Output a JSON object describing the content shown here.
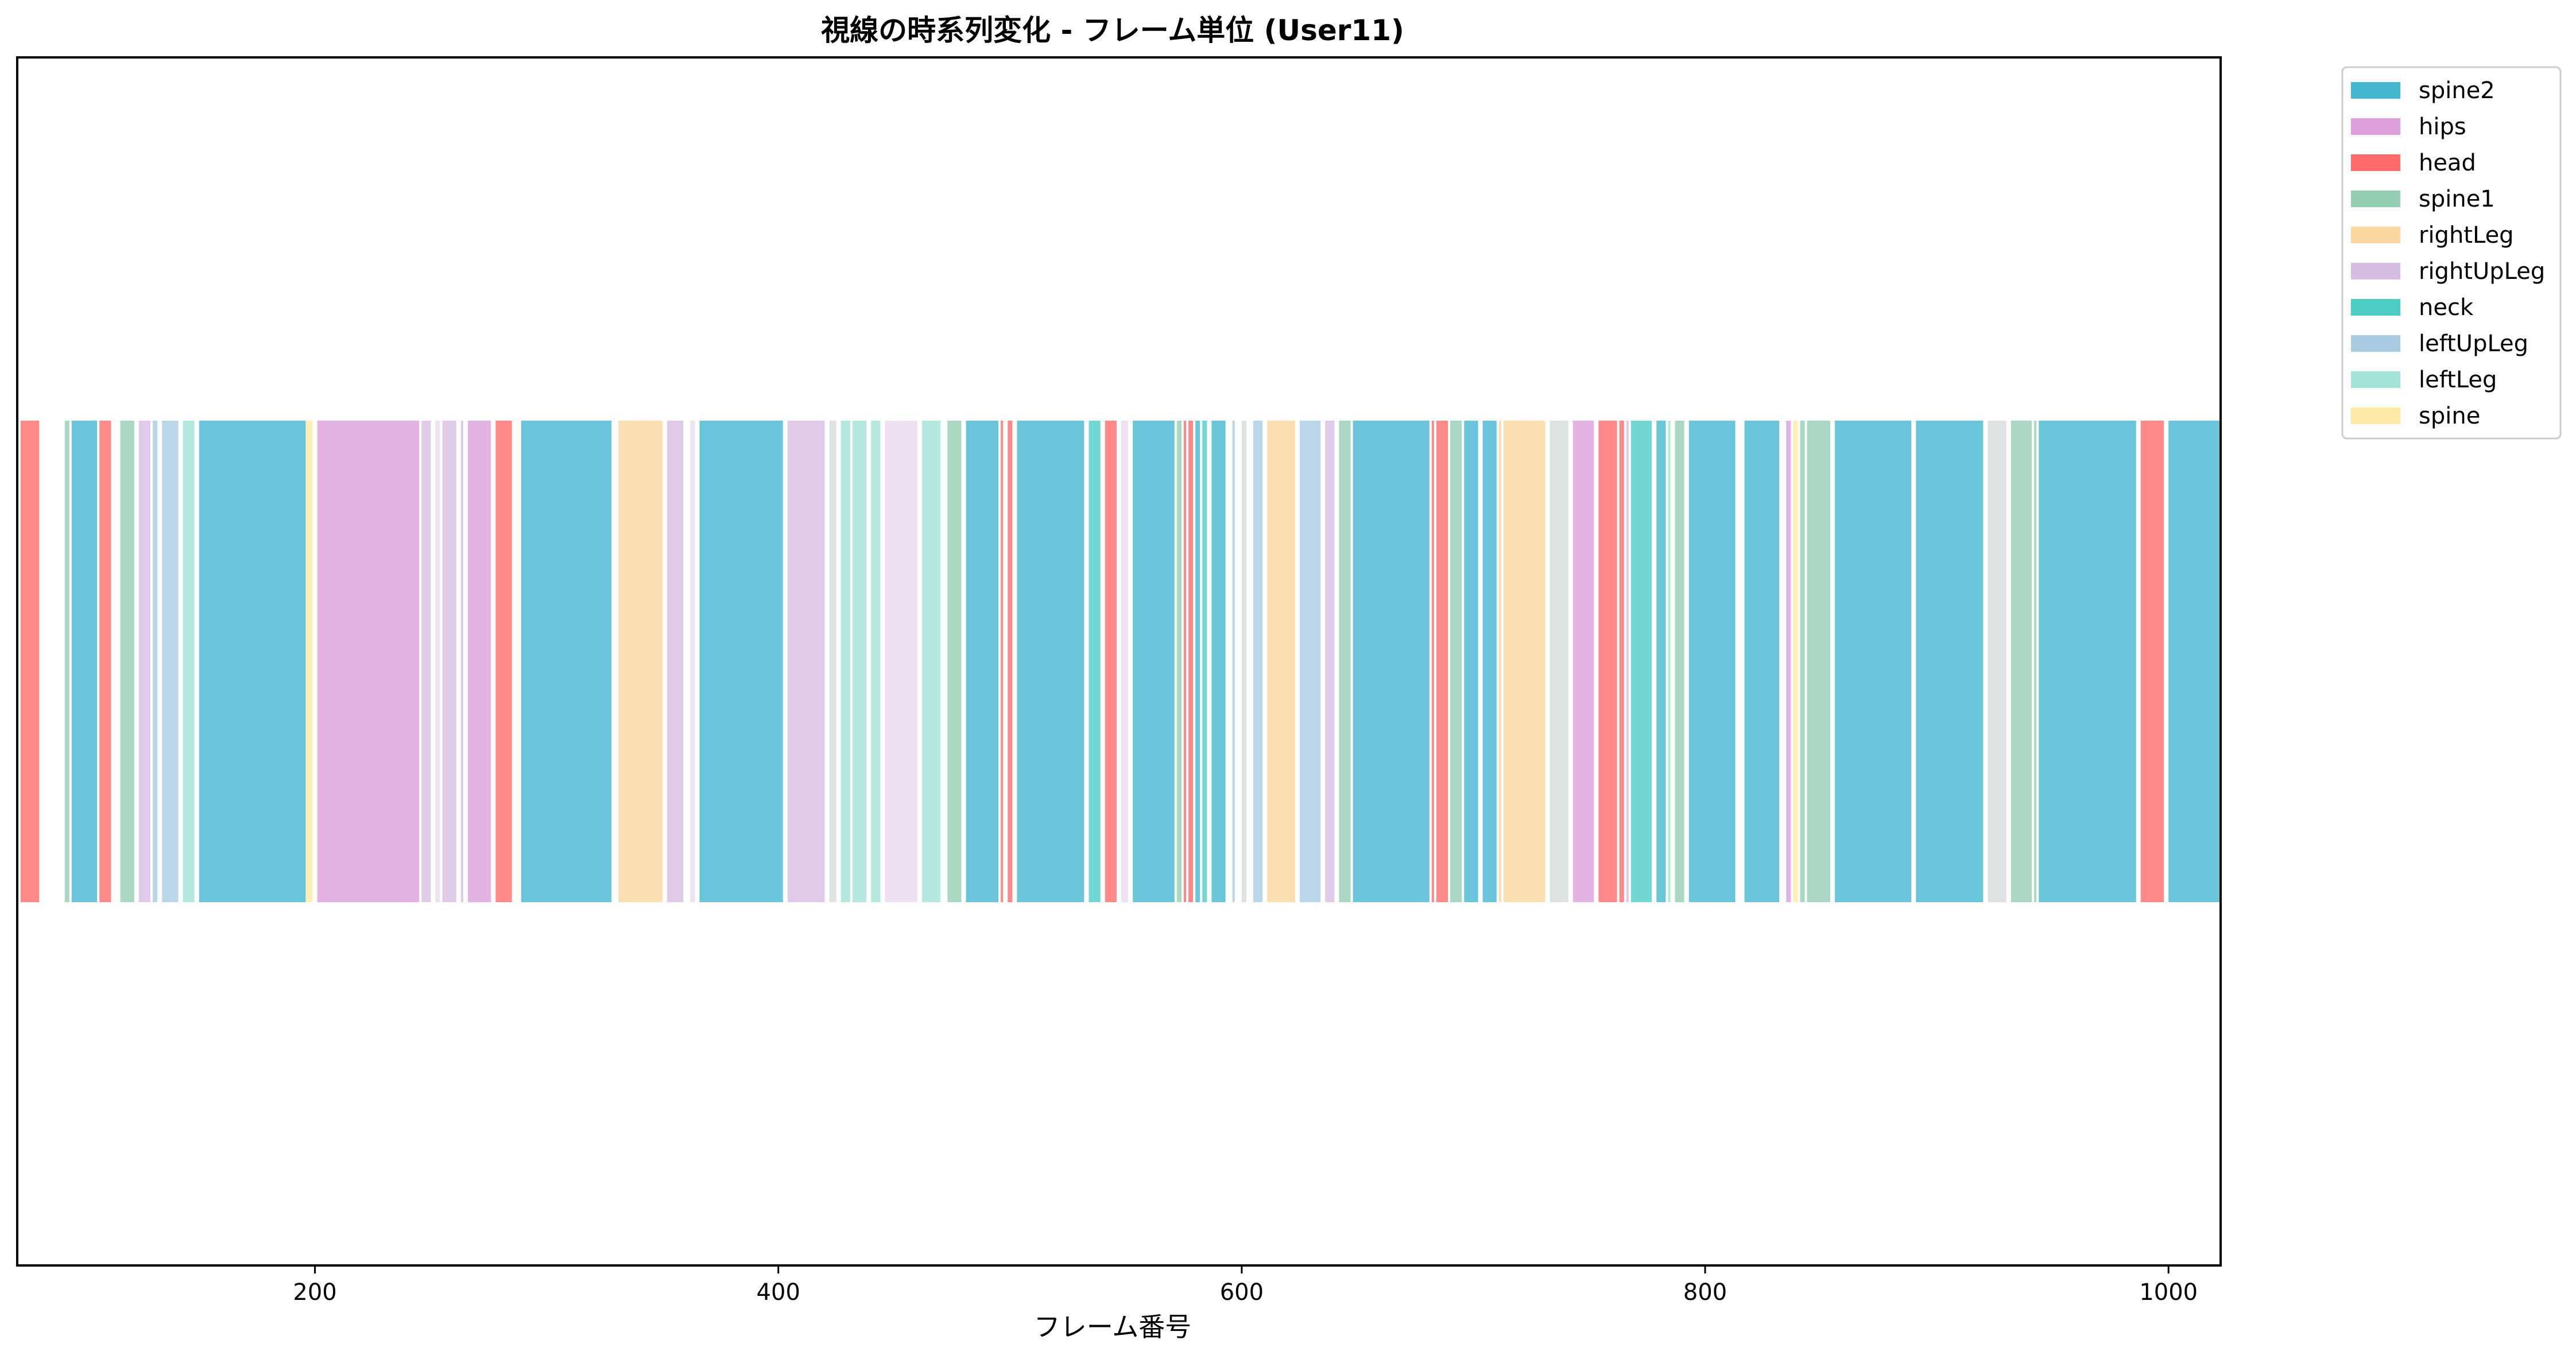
{
  "chart_data": {
    "type": "bar",
    "orientation": "horizontal-timeline",
    "title": "視線の時系列変化 - フレーム単位 (User11)",
    "xlabel": "フレーム番号",
    "ylabel": "",
    "xlim": [
      72,
      1022
    ],
    "xticks": [
      200,
      400,
      600,
      800,
      1000
    ],
    "grid": false,
    "legend_position": "outside-top-right",
    "colors": {
      "spine2": "#45b7d1",
      "hips": "#dda0dd",
      "head": "#ff6b6b",
      "spine1": "#96ceb4",
      "rightLeg": "#fad7a0",
      "rightUpLeg": "#d7bde2",
      "neck": "#4ecdc4",
      "leftUpLeg": "#a9cce3",
      "leftLeg": "#a3e4d7",
      "spine": "#ffeaa7",
      "other_light_gray": "#d5dbdb",
      "other_lavender": "#e8daef"
    },
    "legend": [
      "spine2",
      "hips",
      "head",
      "spine1",
      "rightLeg",
      "rightUpLeg",
      "neck",
      "leftUpLeg",
      "leftLeg",
      "spine"
    ],
    "segments": [
      {
        "start": 73,
        "end": 81,
        "part": "head"
      },
      {
        "start": 92,
        "end": 94,
        "part": "spine1"
      },
      {
        "start": 95,
        "end": 106,
        "part": "spine2"
      },
      {
        "start": 107,
        "end": 112,
        "part": "head"
      },
      {
        "start": 116,
        "end": 122,
        "part": "spine1"
      },
      {
        "start": 124,
        "end": 129,
        "part": "rightUpLeg"
      },
      {
        "start": 130,
        "end": 132,
        "part": "leftUpLeg"
      },
      {
        "start": 134,
        "end": 141,
        "part": "leftUpLeg"
      },
      {
        "start": 143,
        "end": 148,
        "part": "leftLeg"
      },
      {
        "start": 150,
        "end": 196,
        "part": "spine2"
      },
      {
        "start": 196,
        "end": 199,
        "part": "spine"
      },
      {
        "start": 201,
        "end": 245,
        "part": "hips"
      },
      {
        "start": 246,
        "end": 250,
        "part": "rightUpLeg"
      },
      {
        "start": 252,
        "end": 254,
        "part": "other_lavender"
      },
      {
        "start": 255,
        "end": 261,
        "part": "rightUpLeg"
      },
      {
        "start": 263,
        "end": 264,
        "part": "rightUpLeg"
      },
      {
        "start": 266,
        "end": 276,
        "part": "hips"
      },
      {
        "start": 278,
        "end": 285,
        "part": "head"
      },
      {
        "start": 289,
        "end": 328,
        "part": "spine2"
      },
      {
        "start": 331,
        "end": 350,
        "part": "rightLeg"
      },
      {
        "start": 352,
        "end": 359,
        "part": "rightUpLeg"
      },
      {
        "start": 362,
        "end": 364,
        "part": "other_lavender"
      },
      {
        "start": 366,
        "end": 402,
        "part": "spine2"
      },
      {
        "start": 404,
        "end": 420,
        "part": "rightUpLeg"
      },
      {
        "start": 422,
        "end": 425,
        "part": "other_light_gray"
      },
      {
        "start": 427,
        "end": 431,
        "part": "leftLeg"
      },
      {
        "start": 432,
        "end": 438,
        "part": "leftLeg"
      },
      {
        "start": 440,
        "end": 444,
        "part": "leftLeg"
      },
      {
        "start": 446,
        "end": 460,
        "part": "other_lavender"
      },
      {
        "start": 462,
        "end": 470,
        "part": "leftLeg"
      },
      {
        "start": 473,
        "end": 479,
        "part": "spine1"
      },
      {
        "start": 481,
        "end": 495,
        "part": "spine2"
      },
      {
        "start": 496,
        "end": 497,
        "part": "head"
      },
      {
        "start": 499,
        "end": 501,
        "part": "head"
      },
      {
        "start": 503,
        "end": 532,
        "part": "spine2"
      },
      {
        "start": 534,
        "end": 539,
        "part": "neck"
      },
      {
        "start": 541,
        "end": 546,
        "part": "head"
      },
      {
        "start": 548,
        "end": 551,
        "part": "other_lavender"
      },
      {
        "start": 553,
        "end": 571,
        "part": "spine2"
      },
      {
        "start": 572,
        "end": 574,
        "part": "spine1"
      },
      {
        "start": 575,
        "end": 576,
        "part": "head"
      },
      {
        "start": 577,
        "end": 579,
        "part": "head"
      },
      {
        "start": 580,
        "end": 582,
        "part": "spine2"
      },
      {
        "start": 583,
        "end": 585,
        "part": "neck"
      },
      {
        "start": 587,
        "end": 593,
        "part": "spine2"
      },
      {
        "start": 596,
        "end": 597,
        "part": "leftUpLeg"
      },
      {
        "start": 600,
        "end": 602,
        "part": "other_light_gray"
      },
      {
        "start": 605,
        "end": 609,
        "part": "leftUpLeg"
      },
      {
        "start": 611,
        "end": 623,
        "part": "rightLeg"
      },
      {
        "start": 625,
        "end": 634,
        "part": "leftUpLeg"
      },
      {
        "start": 636,
        "end": 640,
        "part": "rightUpLeg"
      },
      {
        "start": 642,
        "end": 647,
        "part": "spine1"
      },
      {
        "start": 648,
        "end": 681,
        "part": "spine2"
      },
      {
        "start": 682,
        "end": 683,
        "part": "head"
      },
      {
        "start": 684,
        "end": 689,
        "part": "head"
      },
      {
        "start": 690,
        "end": 695,
        "part": "spine1"
      },
      {
        "start": 696,
        "end": 702,
        "part": "spine2"
      },
      {
        "start": 704,
        "end": 710,
        "part": "spine2"
      },
      {
        "start": 711,
        "end": 712,
        "part": "rightLeg"
      },
      {
        "start": 713,
        "end": 731,
        "part": "rightLeg"
      },
      {
        "start": 733,
        "end": 741,
        "part": "other_light_gray"
      },
      {
        "start": 743,
        "end": 752,
        "part": "hips"
      },
      {
        "start": 754,
        "end": 762,
        "part": "head"
      },
      {
        "start": 763,
        "end": 765,
        "part": "head"
      },
      {
        "start": 766,
        "end": 767,
        "part": "rightUpLeg"
      },
      {
        "start": 768,
        "end": 777,
        "part": "neck"
      },
      {
        "start": 779,
        "end": 783,
        "part": "spine2"
      },
      {
        "start": 784,
        "end": 785,
        "part": "leftLeg"
      },
      {
        "start": 787,
        "end": 791,
        "part": "spine1"
      },
      {
        "start": 793,
        "end": 813,
        "part": "spine2"
      },
      {
        "start": 817,
        "end": 832,
        "part": "spine2"
      },
      {
        "start": 835,
        "end": 837,
        "part": "hips"
      },
      {
        "start": 838,
        "end": 840,
        "part": "spine"
      },
      {
        "start": 841,
        "end": 843,
        "part": "spine1"
      },
      {
        "start": 844,
        "end": 854,
        "part": "spine1"
      },
      {
        "start": 856,
        "end": 889,
        "part": "spine2"
      },
      {
        "start": 891,
        "end": 920,
        "part": "spine2"
      },
      {
        "start": 922,
        "end": 930,
        "part": "other_light_gray"
      },
      {
        "start": 932,
        "end": 941,
        "part": "spine1"
      },
      {
        "start": 942,
        "end": 943,
        "part": "spine1"
      },
      {
        "start": 944,
        "end": 986,
        "part": "spine2"
      },
      {
        "start": 988,
        "end": 998,
        "part": "head"
      },
      {
        "start": 1000,
        "end": 1022,
        "part": "spine2"
      }
    ]
  }
}
